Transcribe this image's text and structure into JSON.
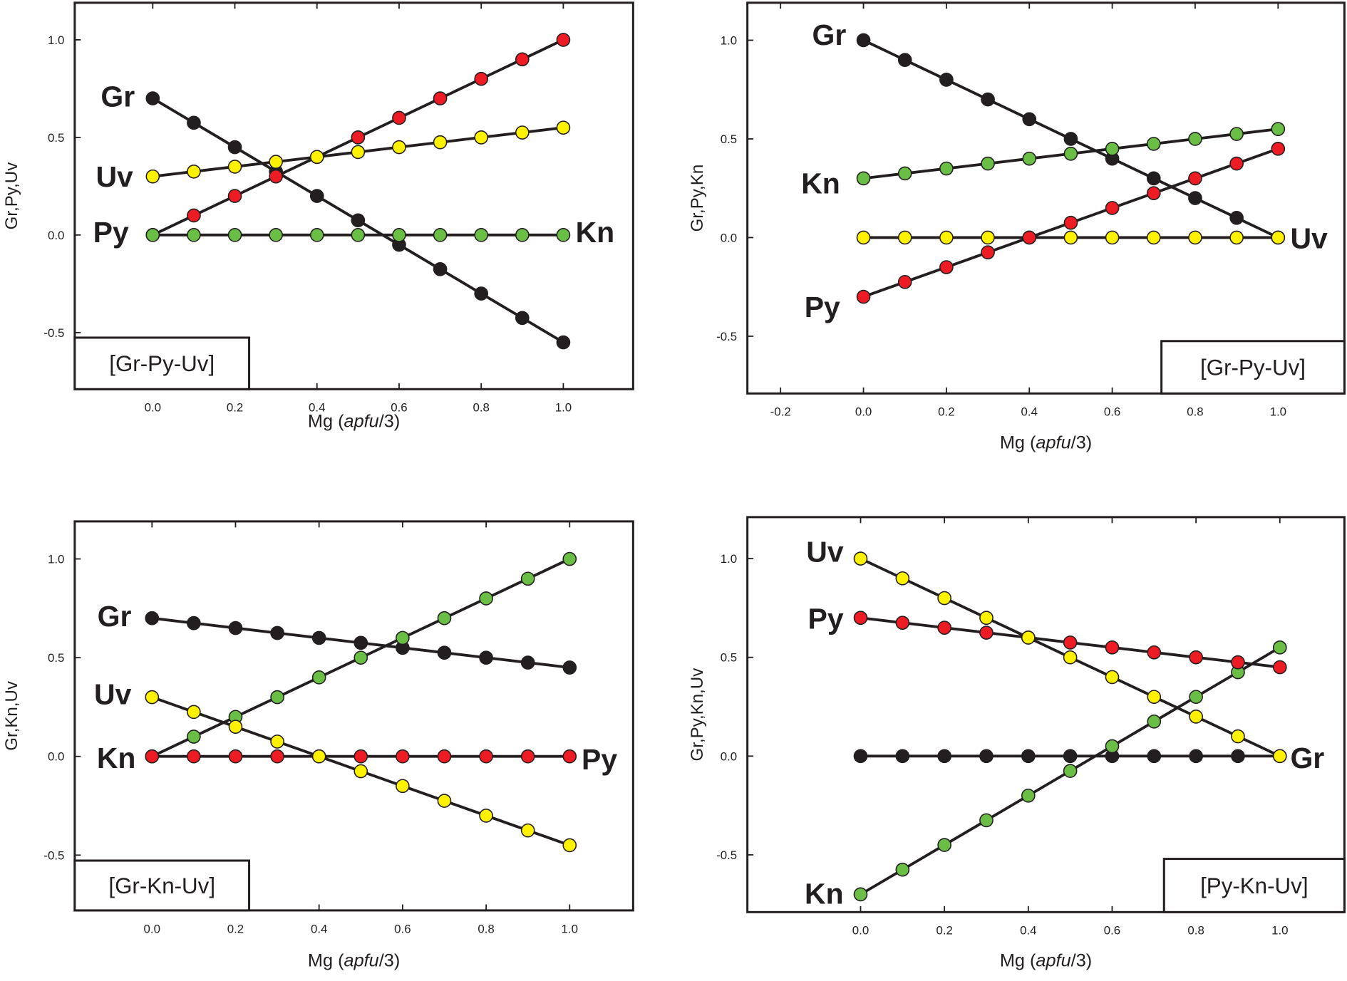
{
  "chart_data": [
    {
      "type": "line",
      "legend_text": "[Gr-Py-Uv]",
      "xlabel": "Mg (apfu/3)",
      "ylabel": "Gr,Py,Uv",
      "xlim": [
        -0.19,
        1.17
      ],
      "ylim": [
        -0.79,
        1.19
      ],
      "xticks": [
        "0.0",
        "0.2",
        "0.4",
        "0.6",
        "0.8",
        "1.0"
      ],
      "yticks": [
        "-0.5",
        "0.0",
        "0.5",
        "1.0"
      ],
      "x": [
        0,
        0.1,
        0.2,
        0.3,
        0.4,
        0.5,
        0.6,
        0.7,
        0.8,
        0.9,
        1.0
      ],
      "series": [
        {
          "name": "Gr",
          "color": "#231f20",
          "values": [
            0.7,
            0.575,
            0.45,
            0.325,
            0.2,
            0.075,
            -0.05,
            -0.175,
            -0.3,
            -0.425,
            -0.55
          ]
        },
        {
          "name": "Py",
          "color": "#ed1c24",
          "values": [
            0,
            0.1,
            0.2,
            0.3,
            0.4,
            0.5,
            0.6,
            0.7,
            0.8,
            0.9,
            1.0
          ]
        },
        {
          "name": "Uv",
          "color": "#fff200",
          "values": [
            0.3,
            0.325,
            0.35,
            0.375,
            0.4,
            0.425,
            0.45,
            0.475,
            0.5,
            0.525,
            0.55
          ]
        },
        {
          "name": "Kn",
          "color": "#6abd45",
          "values": [
            0,
            0,
            0,
            0,
            0,
            0,
            0,
            0,
            0,
            0,
            0
          ]
        }
      ],
      "labels": [
        "Gr",
        "Uv",
        "Py",
        "Kn"
      ],
      "grid": false
    },
    {
      "type": "line",
      "legend_text": "[Gr-Py-Uv]",
      "xlabel": "Mg (apfu/3)",
      "ylabel": "Gr,Py,Kn",
      "xlim": [
        -0.28,
        1.16
      ],
      "ylim": [
        -0.79,
        1.19
      ],
      "xticks": [
        "-0.2",
        "0.0",
        "0.2",
        "0.4",
        "0.6",
        "0.8",
        "1.0"
      ],
      "yticks": [
        "-0.5",
        "0.0",
        "0.5",
        "1.0"
      ],
      "x": [
        0,
        0.1,
        0.2,
        0.3,
        0.4,
        0.5,
        0.6,
        0.7,
        0.8,
        0.9,
        1.0
      ],
      "series": [
        {
          "name": "Gr",
          "color": "#231f20",
          "values": [
            1.0,
            0.9,
            0.8,
            0.7,
            0.6,
            0.5,
            0.4,
            0.3,
            0.2,
            0.1,
            0
          ]
        },
        {
          "name": "Kn",
          "color": "#6abd45",
          "values": [
            0.3,
            0.325,
            0.35,
            0.375,
            0.4,
            0.425,
            0.45,
            0.475,
            0.5,
            0.525,
            0.55
          ]
        },
        {
          "name": "Uv",
          "color": "#fff200",
          "values": [
            0,
            0,
            0,
            0,
            0,
            0,
            0,
            0,
            0,
            0,
            0
          ]
        },
        {
          "name": "Py",
          "color": "#ed1c24",
          "values": [
            -0.3,
            -0.225,
            -0.15,
            -0.075,
            0,
            0.075,
            0.15,
            0.225,
            0.3,
            0.375,
            0.45
          ]
        }
      ],
      "labels": [
        "Gr",
        "Kn",
        "Py",
        "Uv"
      ],
      "grid": false
    },
    {
      "type": "line",
      "legend_text": "[Gr-Kn-Uv]",
      "xlabel": "Mg (apfu/3)",
      "ylabel": "Gr,Kn,Uv",
      "xlim": [
        -0.185,
        1.152
      ],
      "ylim": [
        -0.78,
        1.19
      ],
      "xticks": [
        "0.0",
        "0.2",
        "0.4",
        "0.6",
        "0.8",
        "1.0"
      ],
      "yticks": [
        "-0.5",
        "0.0",
        "0.5",
        "1.0"
      ],
      "x": [
        0,
        0.1,
        0.2,
        0.3,
        0.4,
        0.5,
        0.6,
        0.7,
        0.8,
        0.9,
        1.0
      ],
      "series": [
        {
          "name": "Gr",
          "color": "#231f20",
          "values": [
            0.7,
            0.675,
            0.65,
            0.625,
            0.6,
            0.575,
            0.55,
            0.525,
            0.5,
            0.475,
            0.45
          ]
        },
        {
          "name": "Kn",
          "color": "#6abd45",
          "values": [
            0,
            0.1,
            0.2,
            0.3,
            0.4,
            0.5,
            0.6,
            0.7,
            0.8,
            0.9,
            1.0
          ]
        },
        {
          "name": "Py",
          "color": "#ed1c24",
          "values": [
            0,
            0,
            0,
            0,
            0,
            0,
            0,
            0,
            0,
            0,
            0
          ]
        },
        {
          "name": "Uv",
          "color": "#fff200",
          "values": [
            0.3,
            0.225,
            0.15,
            0.075,
            0,
            -0.075,
            -0.15,
            -0.225,
            -0.3,
            -0.375,
            -0.45
          ]
        }
      ],
      "labels": [
        "Gr",
        "Uv",
        "Kn",
        "Py"
      ],
      "grid": false
    },
    {
      "type": "line",
      "legend_text": "[Py-Kn-Uv]",
      "xlabel": "Mg (apfu/3)",
      "ylabel": "Gr,Py,Kn,Uv",
      "xlim": [
        -0.27,
        1.154
      ],
      "ylim": [
        -0.79,
        1.21
      ],
      "xticks": [
        "0.0",
        "0.2",
        "0.4",
        "0.6",
        "0.8",
        "1.0"
      ],
      "yticks": [
        "-0.5",
        "0.0",
        "0.5",
        "1.0"
      ],
      "x": [
        0,
        0.1,
        0.2,
        0.3,
        0.4,
        0.5,
        0.6,
        0.7,
        0.8,
        0.9,
        1.0
      ],
      "series": [
        {
          "name": "Gr",
          "color": "#231f20",
          "values": [
            0,
            0,
            0,
            0,
            0,
            0,
            0,
            0,
            0,
            0,
            0
          ]
        },
        {
          "name": "Kn",
          "color": "#6abd45",
          "values": [
            -0.7,
            -0.575,
            -0.45,
            -0.325,
            -0.2,
            -0.075,
            0.05,
            0.175,
            0.3,
            0.425,
            0.55
          ]
        },
        {
          "name": "Py",
          "color": "#ed1c24",
          "values": [
            0.7,
            0.675,
            0.65,
            0.625,
            0.6,
            0.575,
            0.55,
            0.525,
            0.5,
            0.475,
            0.45
          ]
        },
        {
          "name": "Uv",
          "color": "#fff200",
          "values": [
            1.0,
            0.9,
            0.8,
            0.7,
            0.6,
            0.5,
            0.4,
            0.3,
            0.2,
            0.1,
            0
          ]
        }
      ],
      "labels": [
        "Uv",
        "Py",
        "Kn",
        "Gr"
      ],
      "grid": false
    }
  ]
}
